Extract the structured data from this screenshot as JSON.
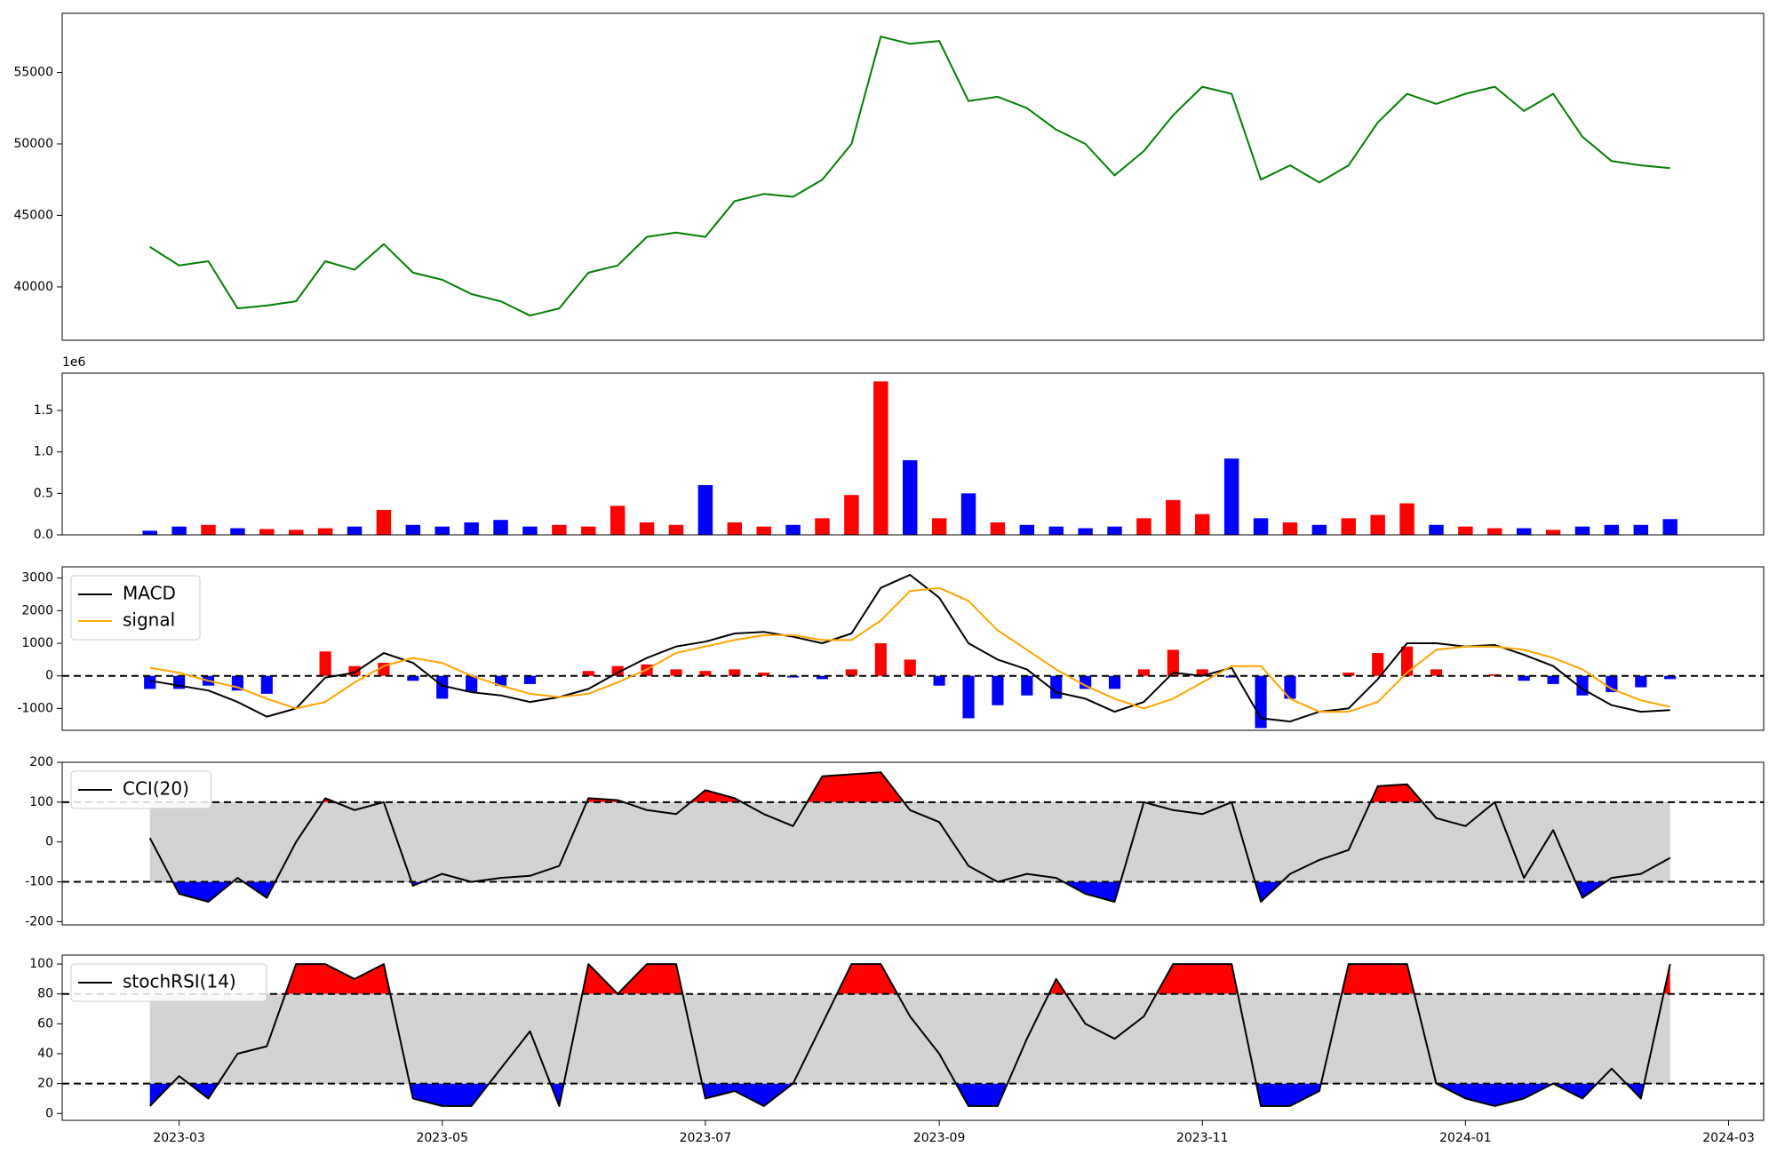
{
  "chart_data": [
    {
      "type": "line",
      "series": [
        {
          "color": "green",
          "values": [
            42800,
            41500,
            41800,
            38500,
            38700,
            39000,
            41800,
            41200,
            43000,
            41000,
            40500,
            39500,
            39000,
            38000,
            38500,
            41000,
            41500,
            43500,
            43800,
            43500,
            46000,
            46500,
            46300,
            47500,
            50000,
            57500,
            57000,
            57200,
            53000,
            53300,
            52500,
            51000,
            50000,
            47800,
            49500,
            52000,
            54000,
            53500,
            47500,
            48500,
            47300,
            48500,
            51500,
            53500,
            52800,
            53500,
            54000,
            52300,
            53500,
            50500,
            48800,
            48500,
            48300,
            null,
            null
          ]
        }
      ],
      "ylim": [
        36270,
        59130
      ],
      "yticks": [
        40000,
        45000,
        50000,
        55000
      ]
    },
    {
      "type": "bar",
      "values": [
        0.05,
        0.1,
        0.12,
        0.08,
        0.07,
        0.06,
        0.08,
        0.1,
        0.3,
        0.12,
        0.1,
        0.15,
        0.18,
        0.1,
        0.12,
        0.1,
        0.35,
        0.15,
        0.12,
        0.6,
        0.15,
        0.1,
        0.12,
        0.2,
        0.48,
        1.85,
        0.9,
        0.2,
        0.5,
        0.15,
        0.12,
        0.1,
        0.08,
        0.1,
        0.2,
        0.42,
        0.25,
        0.92,
        0.2,
        0.15,
        0.12,
        0.2,
        0.24,
        0.38,
        0.12,
        0.1,
        0.08,
        0.08,
        0.06,
        0.1,
        0.12,
        0.12,
        0.19,
        null,
        null
      ],
      "colors": [
        "blue",
        "blue",
        "red",
        "blue",
        "red",
        "red",
        "red",
        "blue",
        "red",
        "blue",
        "blue",
        "blue",
        "blue",
        "blue",
        "red",
        "red",
        "red",
        "red",
        "red",
        "blue",
        "red",
        "red",
        "blue",
        "red",
        "red",
        "red",
        "blue",
        "red",
        "blue",
        "red",
        "blue",
        "blue",
        "blue",
        "blue",
        "red",
        "red",
        "red",
        "blue",
        "blue",
        "red",
        "blue",
        "red",
        "red",
        "red",
        "blue",
        "red",
        "red",
        "blue",
        "red",
        "blue",
        "blue",
        "blue",
        "blue",
        null,
        null
      ],
      "ylim": [
        0,
        1.95
      ],
      "yticks": [
        {
          "value": 0,
          "label": "0.0"
        },
        0.5,
        {
          "value": 1,
          "label": "1.0"
        },
        1.5
      ],
      "offset_label": "1e6"
    },
    {
      "type": "macd",
      "series": [
        {
          "name": "MACD",
          "color": "black",
          "values": [
            -150,
            -300,
            -450,
            -800,
            -1250,
            -1000,
            -50,
            100,
            700,
            400,
            -300,
            -500,
            -600,
            -800,
            -650,
            -400,
            100,
            550,
            900,
            1050,
            1300,
            1350,
            1200,
            1000,
            1300,
            2700,
            3100,
            2400,
            1000,
            500,
            200,
            -500,
            -700,
            -1100,
            -800,
            100,
            0,
            250,
            -1300,
            -1400,
            -1100,
            -1000,
            -100,
            1000,
            1000,
            900,
            950,
            650,
            300,
            -400,
            -900,
            -1100,
            -1050,
            null,
            null
          ]
        },
        {
          "name": "signal",
          "color": "orange",
          "values": [
            250,
            100,
            -150,
            -350,
            -700,
            -1000,
            -800,
            -200,
            300,
            550,
            400,
            0,
            -300,
            -550,
            -650,
            -550,
            -200,
            200,
            700,
            900,
            1100,
            1250,
            1250,
            1100,
            1100,
            1700,
            2600,
            2700,
            2300,
            1400,
            800,
            200,
            -300,
            -700,
            -1000,
            -700,
            -200,
            300,
            300,
            -700,
            -1100,
            -1100,
            -800,
            100,
            800,
            900,
            900,
            800,
            550,
            200,
            -400,
            -750,
            -950,
            null,
            null
          ]
        }
      ],
      "histogram": {
        "values": [
          -400,
          -400,
          -300,
          -450,
          -550,
          0,
          750,
          300,
          400,
          -150,
          -700,
          -500,
          -300,
          -250,
          0,
          150,
          300,
          350,
          200,
          150,
          200,
          100,
          -50,
          -100,
          200,
          1000,
          500,
          -300,
          -1300,
          -900,
          -600,
          -700,
          -400,
          -400,
          200,
          800,
          200,
          -50,
          -1600,
          -700,
          0,
          100,
          700,
          900,
          200,
          0,
          50,
          -150,
          -250,
          -600,
          -500,
          -350,
          -100,
          null,
          null
        ],
        "positive_color": "red",
        "negative_color": "blue"
      },
      "hlines": [
        0
      ],
      "ylim": [
        -1670,
        3345
      ],
      "yticks": [
        -1000,
        0,
        1000,
        2000,
        3000
      ],
      "legend": "upper left"
    },
    {
      "type": "oscillator",
      "series": [
        {
          "name": "CCI(20)",
          "color": "black",
          "values": [
            10,
            -130,
            -150,
            -90,
            -140,
            0,
            110,
            80,
            100,
            -110,
            -80,
            -100,
            -90,
            -85,
            -60,
            110,
            105,
            80,
            70,
            130,
            110,
            70,
            40,
            165,
            170,
            175,
            80,
            50,
            -60,
            -100,
            -80,
            -90,
            -130,
            -150,
            100,
            80,
            70,
            100,
            -150,
            -80,
            -45,
            -20,
            140,
            145,
            60,
            40,
            100,
            -90,
            30,
            -140,
            -90,
            -80,
            -40,
            null,
            null
          ]
        }
      ],
      "hlines": [
        -100,
        100
      ],
      "band_color": "lightgrey",
      "upper_color": "red",
      "lower_color": "blue",
      "ylim": [
        -208,
        200
      ],
      "yticks": [
        -200,
        -100,
        0,
        100,
        200
      ],
      "legend": "upper left"
    },
    {
      "type": "oscillator",
      "series": [
        {
          "name": "stochRSI(14)",
          "color": "black",
          "values": [
            5,
            25,
            10,
            40,
            45,
            100,
            100,
            90,
            100,
            10,
            5,
            5,
            30,
            55,
            5,
            100,
            80,
            100,
            100,
            10,
            15,
            5,
            20,
            60,
            100,
            100,
            65,
            40,
            5,
            5,
            50,
            90,
            60,
            50,
            65,
            100,
            100,
            100,
            5,
            5,
            15,
            100,
            100,
            100,
            20,
            10,
            5,
            10,
            20,
            10,
            30,
            10,
            100,
            null,
            null
          ]
        }
      ],
      "hlines": [
        20,
        80
      ],
      "band_color": "lightgrey",
      "upper_color": "red",
      "lower_color": "blue",
      "ylim": [
        -4.6,
        106
      ],
      "yticks": [
        0,
        20,
        40,
        60,
        80,
        100
      ],
      "legend": "upper left",
      "categories": [
        null,
        "2023-03",
        null,
        null,
        null,
        null,
        null,
        null,
        null,
        null,
        "2023-05",
        null,
        null,
        null,
        null,
        null,
        null,
        null,
        null,
        "2023-07",
        null,
        null,
        null,
        null,
        null,
        null,
        null,
        "2023-09",
        null,
        null,
        null,
        null,
        null,
        null,
        null,
        null,
        "2023-11",
        null,
        null,
        null,
        null,
        null,
        null,
        null,
        null,
        "2024-01",
        null,
        null,
        null,
        null,
        null,
        null,
        null,
        null,
        "2024-03"
      ]
    }
  ]
}
